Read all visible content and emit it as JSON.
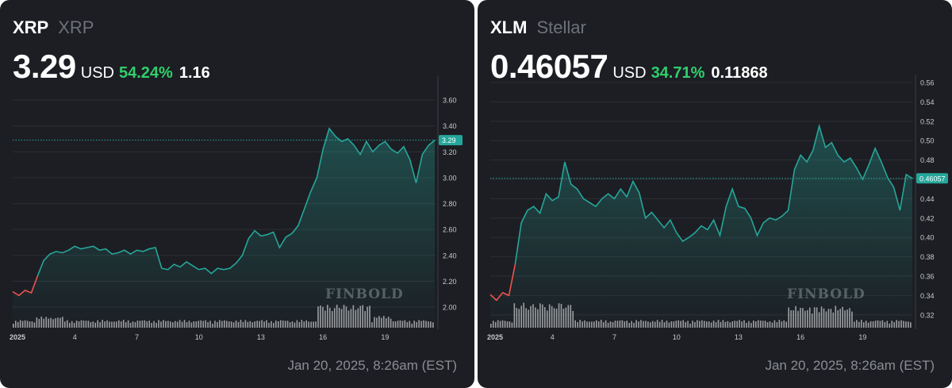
{
  "chart_data": [
    {
      "type": "line",
      "symbol": "XRP",
      "name": "XRP",
      "price": "3.29",
      "currency": "USD",
      "change_pct": "54.24%",
      "change_abs": "1.16",
      "x_ticks": [
        "2025",
        "4",
        "7",
        "10",
        "13",
        "16",
        "19"
      ],
      "y_ticks": [
        "2.00",
        "2.20",
        "2.40",
        "2.60",
        "2.80",
        "3.00",
        "3.20",
        "3.40",
        "3.60"
      ],
      "ylim": [
        1.89,
        3.76
      ],
      "current_label": "3.29",
      "watermark": "FINBOLD",
      "timestamp": "Jan 20, 2025, 8:26am (EST)",
      "x": [
        0,
        0.3,
        0.6,
        0.9,
        1.2,
        1.5,
        1.8,
        2.1,
        2.4,
        2.7,
        3.0,
        3.3,
        3.6,
        3.9,
        4.2,
        4.5,
        4.8,
        5.1,
        5.4,
        5.7,
        6.0,
        6.3,
        6.6,
        6.9,
        7.2,
        7.5,
        7.8,
        8.1,
        8.4,
        8.7,
        9.0,
        9.3,
        9.6,
        9.9,
        10.2,
        10.5,
        10.8,
        11.1,
        11.4,
        11.7,
        12.0,
        12.3,
        12.6,
        12.9,
        13.2,
        13.5,
        13.8,
        14.1,
        14.4,
        14.7,
        15.0,
        15.3,
        15.6,
        15.9,
        16.2,
        16.5,
        16.8,
        17.1,
        17.4,
        17.7,
        18.0,
        18.3,
        18.6,
        18.9,
        19.2,
        19.5,
        19.8,
        20.1,
        20.4
      ],
      "values": [
        2.12,
        2.09,
        2.13,
        2.11,
        2.24,
        2.36,
        2.41,
        2.43,
        2.42,
        2.44,
        2.47,
        2.45,
        2.46,
        2.47,
        2.44,
        2.45,
        2.41,
        2.42,
        2.44,
        2.41,
        2.44,
        2.43,
        2.45,
        2.46,
        2.3,
        2.29,
        2.33,
        2.31,
        2.35,
        2.32,
        2.29,
        2.3,
        2.26,
        2.3,
        2.29,
        2.3,
        2.34,
        2.4,
        2.53,
        2.59,
        2.55,
        2.56,
        2.58,
        2.46,
        2.54,
        2.57,
        2.63,
        2.76,
        2.89,
        3.0,
        3.22,
        3.38,
        3.32,
        3.28,
        3.3,
        3.25,
        3.18,
        3.28,
        3.2,
        3.25,
        3.28,
        3.22,
        3.19,
        3.24,
        3.14,
        2.96,
        3.18,
        3.25,
        3.29
      ]
    },
    {
      "type": "line",
      "symbol": "XLM",
      "name": "Stellar",
      "price": "0.46057",
      "currency": "USD",
      "change_pct": "34.71%",
      "change_abs": "0.11868",
      "x_ticks": [
        "2025",
        "4",
        "7",
        "10",
        "13",
        "16",
        "19"
      ],
      "y_ticks": [
        "0.32",
        "0.34",
        "0.36",
        "0.38",
        "0.40",
        "0.42",
        "0.44",
        "0.46",
        "0.48",
        "0.50",
        "0.52",
        "0.54",
        "0.56"
      ],
      "ylim": [
        0.3133,
        0.5633
      ],
      "current_label": "0.46057",
      "watermark": "FINBOLD",
      "timestamp": "Jan 20, 2025, 8:26am (EST)",
      "x": [
        0,
        0.3,
        0.6,
        0.9,
        1.2,
        1.5,
        1.8,
        2.1,
        2.4,
        2.7,
        3.0,
        3.3,
        3.6,
        3.9,
        4.2,
        4.5,
        4.8,
        5.1,
        5.4,
        5.7,
        6.0,
        6.3,
        6.6,
        6.9,
        7.2,
        7.5,
        7.8,
        8.1,
        8.4,
        8.7,
        9.0,
        9.3,
        9.6,
        9.9,
        10.2,
        10.5,
        10.8,
        11.1,
        11.4,
        11.7,
        12.0,
        12.3,
        12.6,
        12.9,
        13.2,
        13.5,
        13.8,
        14.1,
        14.4,
        14.7,
        15.0,
        15.3,
        15.6,
        15.9,
        16.2,
        16.5,
        16.8,
        17.1,
        17.4,
        17.7,
        18.0,
        18.3,
        18.6,
        18.9,
        19.2,
        19.5,
        19.8,
        20.1,
        20.4
      ],
      "values": [
        0.341,
        0.335,
        0.343,
        0.34,
        0.372,
        0.415,
        0.428,
        0.432,
        0.425,
        0.445,
        0.438,
        0.442,
        0.478,
        0.455,
        0.45,
        0.44,
        0.436,
        0.432,
        0.44,
        0.445,
        0.44,
        0.45,
        0.442,
        0.458,
        0.446,
        0.42,
        0.426,
        0.418,
        0.41,
        0.418,
        0.405,
        0.396,
        0.4,
        0.405,
        0.412,
        0.408,
        0.418,
        0.402,
        0.432,
        0.45,
        0.432,
        0.43,
        0.42,
        0.402,
        0.415,
        0.42,
        0.418,
        0.422,
        0.428,
        0.47,
        0.485,
        0.478,
        0.49,
        0.515,
        0.493,
        0.498,
        0.485,
        0.478,
        0.482,
        0.472,
        0.46,
        0.475,
        0.492,
        0.478,
        0.462,
        0.452,
        0.428,
        0.465,
        0.461
      ]
    }
  ]
}
